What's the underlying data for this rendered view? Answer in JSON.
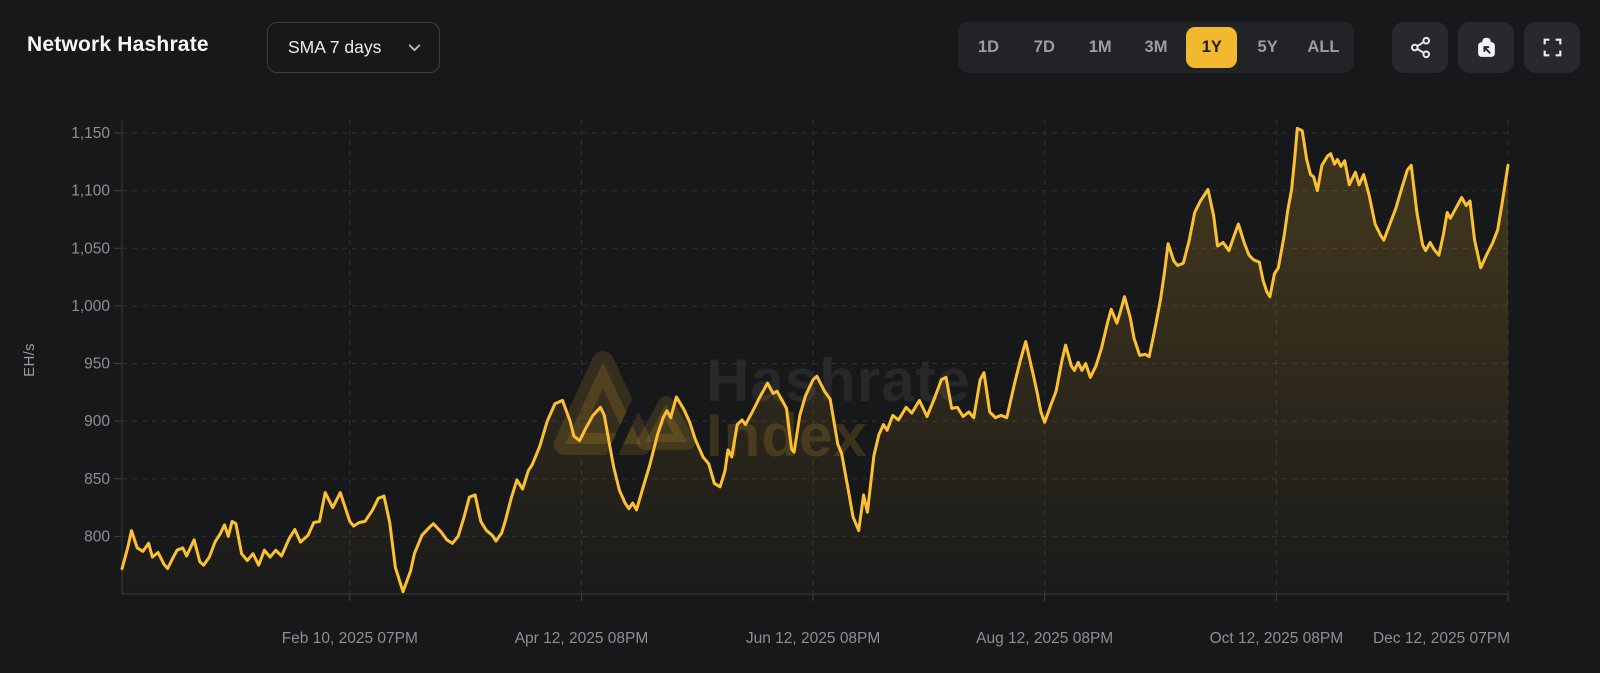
{
  "header": {
    "title": "Network Hashrate",
    "sma_dropdown": {
      "value": "SMA 7 days"
    }
  },
  "controls": {
    "ranges": [
      {
        "label": "1D",
        "active": false
      },
      {
        "label": "7D",
        "active": false
      },
      {
        "label": "1M",
        "active": false
      },
      {
        "label": "3M",
        "active": false
      },
      {
        "label": "1Y",
        "active": true
      },
      {
        "label": "5Y",
        "active": false
      },
      {
        "label": "ALL",
        "active": false
      }
    ],
    "active_range": "1Y",
    "icons": {
      "dropdown": "chevron-down-icon",
      "share": "share-icon",
      "snapshot": "camera-icon",
      "fullscreen": "fullscreen-icon"
    }
  },
  "colors": {
    "background": "#17181a",
    "control_bg": "#212327",
    "icon_button_bg": "#27292e",
    "accent_yellow": "#f2b82f",
    "line_gold": "#fcc033",
    "text_primary": "#f5f6f7",
    "text_secondary": "#9a9da3",
    "axis_text": "#8c8f95",
    "grid": "#2e3136"
  },
  "chart_data": {
    "type": "line",
    "title": "Network Hashrate",
    "series_name": "Network Hashrate (SMA 7 days)",
    "ylabel": "EH/s",
    "xlabel": "",
    "x_unit": "days since Dec 12, 2024",
    "xlim": [
      0,
      365
    ],
    "ylim": [
      750,
      1163
    ],
    "grid": "dashed",
    "legend": "none",
    "y_ticks": [
      800,
      850,
      900,
      950,
      1000,
      1050,
      1100,
      1150
    ],
    "y_tick_labels": [
      "800",
      "850",
      "900",
      "950",
      "1,000",
      "1,050",
      "1,100",
      "1,150"
    ],
    "x_ticks": [
      {
        "d": 60,
        "label": "Feb 10, 2025 07PM"
      },
      {
        "d": 121,
        "label": "Apr 12, 2025 08PM"
      },
      {
        "d": 182,
        "label": "Jun 12, 2025 08PM"
      },
      {
        "d": 243,
        "label": "Aug 12, 2025 08PM"
      },
      {
        "d": 304,
        "label": "Oct 12, 2025 08PM"
      },
      {
        "d": 365,
        "label": "Dec 12, 2025 07PM"
      }
    ],
    "watermark": {
      "line1": "Hashrate",
      "line2": "Index"
    },
    "series": [
      {
        "name": "hashrate_ehs",
        "points": [
          [
            0,
            772
          ],
          [
            1.5,
            790
          ],
          [
            2.5,
            805
          ],
          [
            4,
            790
          ],
          [
            5.5,
            787
          ],
          [
            7,
            794
          ],
          [
            8,
            782
          ],
          [
            9.5,
            786
          ],
          [
            11,
            776
          ],
          [
            12,
            772
          ],
          [
            13.5,
            782
          ],
          [
            14.5,
            788
          ],
          [
            16,
            790
          ],
          [
            17,
            783
          ],
          [
            19,
            797
          ],
          [
            20.5,
            778
          ],
          [
            21.5,
            775
          ],
          [
            23,
            782
          ],
          [
            24.5,
            795
          ],
          [
            26,
            803
          ],
          [
            27,
            810
          ],
          [
            28,
            800
          ],
          [
            29,
            813
          ],
          [
            30,
            811
          ],
          [
            31.5,
            785
          ],
          [
            33,
            779
          ],
          [
            34.5,
            785
          ],
          [
            36,
            775
          ],
          [
            37.5,
            788
          ],
          [
            39,
            782
          ],
          [
            40.5,
            788
          ],
          [
            42,
            783
          ],
          [
            44,
            798
          ],
          [
            45.5,
            806
          ],
          [
            47,
            795
          ],
          [
            49,
            801
          ],
          [
            50.5,
            812
          ],
          [
            52,
            813
          ],
          [
            53.5,
            838
          ],
          [
            55.5,
            825
          ],
          [
            57.5,
            838
          ],
          [
            60,
            813
          ],
          [
            61,
            809
          ],
          [
            62.5,
            812
          ],
          [
            64,
            813
          ],
          [
            66,
            823
          ],
          [
            67.5,
            833
          ],
          [
            69,
            835
          ],
          [
            70.5,
            812
          ],
          [
            72,
            773
          ],
          [
            74,
            752
          ],
          [
            76,
            770
          ],
          [
            77,
            785
          ],
          [
            79,
            801
          ],
          [
            81,
            808
          ],
          [
            82,
            811
          ],
          [
            84,
            804
          ],
          [
            85.5,
            797
          ],
          [
            87,
            794
          ],
          [
            88.5,
            800
          ],
          [
            90,
            816
          ],
          [
            91.5,
            834
          ],
          [
            93,
            836
          ],
          [
            94.5,
            813
          ],
          [
            96,
            805
          ],
          [
            97.5,
            801
          ],
          [
            98.5,
            796
          ],
          [
            100,
            803
          ],
          [
            101,
            814
          ],
          [
            102.5,
            833
          ],
          [
            104,
            849
          ],
          [
            105.5,
            841
          ],
          [
            107,
            857
          ],
          [
            108,
            862
          ],
          [
            110,
            878
          ],
          [
            112,
            900
          ],
          [
            114,
            915
          ],
          [
            116,
            918
          ],
          [
            118,
            900
          ],
          [
            119,
            887
          ],
          [
            120.5,
            883
          ],
          [
            122,
            893
          ],
          [
            124,
            905
          ],
          [
            126,
            912
          ],
          [
            127,
            905
          ],
          [
            128.5,
            878
          ],
          [
            129.5,
            860
          ],
          [
            131,
            840
          ],
          [
            132.5,
            829
          ],
          [
            133.5,
            824
          ],
          [
            134.5,
            829
          ],
          [
            135.5,
            823
          ],
          [
            137,
            840
          ],
          [
            139,
            862
          ],
          [
            141,
            888
          ],
          [
            142.5,
            903
          ],
          [
            143.5,
            909
          ],
          [
            144.5,
            903
          ],
          [
            146,
            921
          ],
          [
            148,
            910
          ],
          [
            149.5,
            899
          ],
          [
            151,
            884
          ],
          [
            153,
            869
          ],
          [
            154.5,
            863
          ],
          [
            156,
            846
          ],
          [
            157.5,
            843
          ],
          [
            158.8,
            857
          ],
          [
            159.6,
            875
          ],
          [
            160.6,
            869
          ],
          [
            162,
            897
          ],
          [
            163.3,
            901
          ],
          [
            164.2,
            897
          ],
          [
            166,
            908
          ],
          [
            168,
            921
          ],
          [
            170,
            933
          ],
          [
            171.5,
            924
          ],
          [
            172.5,
            926
          ],
          [
            174,
            917
          ],
          [
            175,
            911
          ],
          [
            176.3,
            876
          ],
          [
            177,
            873
          ],
          [
            178.5,
            905
          ],
          [
            180,
            922
          ],
          [
            182,
            936
          ],
          [
            183,
            939
          ],
          [
            185,
            926
          ],
          [
            186.5,
            919
          ],
          [
            188.5,
            880
          ],
          [
            189.5,
            872
          ],
          [
            191,
            845
          ],
          [
            192.5,
            817
          ],
          [
            194,
            805
          ],
          [
            195.3,
            836
          ],
          [
            196.3,
            821
          ],
          [
            198,
            870
          ],
          [
            199.3,
            888
          ],
          [
            200.5,
            897
          ],
          [
            201.5,
            892
          ],
          [
            203,
            905
          ],
          [
            204.5,
            901
          ],
          [
            206.5,
            912
          ],
          [
            208,
            907
          ],
          [
            210,
            918
          ],
          [
            212,
            904
          ],
          [
            214,
            920
          ],
          [
            215.8,
            936
          ],
          [
            217,
            938
          ],
          [
            218.5,
            911
          ],
          [
            220,
            912
          ],
          [
            221.5,
            904
          ],
          [
            223,
            908
          ],
          [
            224.3,
            903
          ],
          [
            226,
            936
          ],
          [
            227,
            942
          ],
          [
            228.5,
            908
          ],
          [
            230,
            903
          ],
          [
            231.5,
            905
          ],
          [
            233,
            903
          ],
          [
            235,
            932
          ],
          [
            236.5,
            952
          ],
          [
            238,
            969
          ],
          [
            240,
            940
          ],
          [
            241,
            925
          ],
          [
            242,
            908
          ],
          [
            243,
            899
          ],
          [
            244.5,
            913
          ],
          [
            246,
            926
          ],
          [
            247.5,
            952
          ],
          [
            248.5,
            966
          ],
          [
            250,
            948
          ],
          [
            250.8,
            944
          ],
          [
            251.8,
            951
          ],
          [
            252.8,
            944
          ],
          [
            253.8,
            950
          ],
          [
            255,
            938
          ],
          [
            256.5,
            948
          ],
          [
            258,
            964
          ],
          [
            259.5,
            985
          ],
          [
            260.5,
            997
          ],
          [
            262,
            985
          ],
          [
            263,
            996
          ],
          [
            264,
            1008
          ],
          [
            265.5,
            990
          ],
          [
            266.5,
            972
          ],
          [
            268,
            957
          ],
          [
            269.5,
            958
          ],
          [
            270.5,
            956
          ],
          [
            272,
            980
          ],
          [
            273.5,
            1006
          ],
          [
            274.5,
            1028
          ],
          [
            275.5,
            1054
          ],
          [
            277,
            1039
          ],
          [
            278,
            1035
          ],
          [
            279.5,
            1037
          ],
          [
            281,
            1056
          ],
          [
            282.5,
            1081
          ],
          [
            284,
            1091
          ],
          [
            286,
            1101
          ],
          [
            287.5,
            1078
          ],
          [
            288.5,
            1052
          ],
          [
            290,
            1055
          ],
          [
            291.5,
            1048
          ],
          [
            293,
            1062
          ],
          [
            294,
            1071
          ],
          [
            295.5,
            1055
          ],
          [
            296.8,
            1044
          ],
          [
            298,
            1040
          ],
          [
            299.5,
            1038
          ],
          [
            300.5,
            1022
          ],
          [
            301.5,
            1012
          ],
          [
            302.3,
            1008
          ],
          [
            303.5,
            1028
          ],
          [
            304.5,
            1033
          ],
          [
            306,
            1060
          ],
          [
            307,
            1083
          ],
          [
            308,
            1101
          ],
          [
            308.8,
            1127
          ],
          [
            309.5,
            1154
          ],
          [
            310.8,
            1152
          ],
          [
            312,
            1127
          ],
          [
            313,
            1114
          ],
          [
            313.8,
            1112
          ],
          [
            314.8,
            1100
          ],
          [
            316,
            1122
          ],
          [
            317.5,
            1130
          ],
          [
            318.3,
            1132
          ],
          [
            319.3,
            1123
          ],
          [
            320.1,
            1127
          ],
          [
            321,
            1121
          ],
          [
            322,
            1126
          ],
          [
            323.2,
            1105
          ],
          [
            324.8,
            1116
          ],
          [
            325.8,
            1105
          ],
          [
            327,
            1114
          ],
          [
            328.5,
            1095
          ],
          [
            330,
            1071
          ],
          [
            331.5,
            1061
          ],
          [
            332.3,
            1057
          ],
          [
            334,
            1072
          ],
          [
            335.5,
            1085
          ],
          [
            337,
            1102
          ],
          [
            338.5,
            1118
          ],
          [
            339.5,
            1122
          ],
          [
            341,
            1081
          ],
          [
            342.5,
            1053
          ],
          [
            343.3,
            1048
          ],
          [
            344.5,
            1055
          ],
          [
            345.5,
            1049
          ],
          [
            346.8,
            1044
          ],
          [
            348,
            1062
          ],
          [
            349,
            1081
          ],
          [
            349.8,
            1076
          ],
          [
            351,
            1083
          ],
          [
            352.8,
            1094
          ],
          [
            354,
            1087
          ],
          [
            355,
            1091
          ],
          [
            356.2,
            1057
          ],
          [
            357.8,
            1033
          ],
          [
            359.3,
            1044
          ],
          [
            361,
            1055
          ],
          [
            362.3,
            1066
          ],
          [
            363.5,
            1090
          ],
          [
            364.3,
            1107
          ],
          [
            365,
            1122
          ]
        ]
      }
    ]
  }
}
